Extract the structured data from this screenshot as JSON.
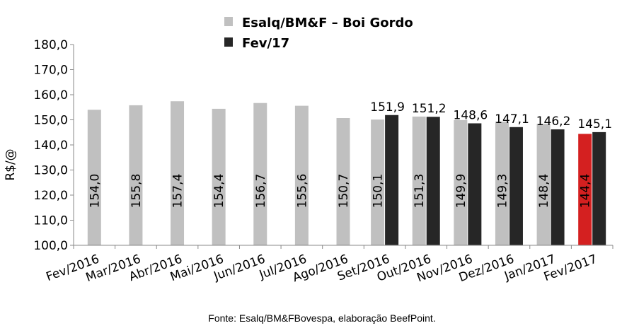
{
  "chart_data": {
    "type": "bar",
    "title": "",
    "xlabel": "",
    "ylabel": "R$/@",
    "ylim": [
      100,
      180
    ],
    "yticks": [
      "100,0",
      "110,0",
      "120,0",
      "130,0",
      "140,0",
      "150,0",
      "160,0",
      "170,0",
      "180,0"
    ],
    "grid": false,
    "legend_position": "top",
    "categories": [
      "Fev/2016",
      "Mar/2016",
      "Abr/2016",
      "Mai/2016",
      "Jun/2016",
      "Jul/2016",
      "Ago/2016",
      "Set/2016",
      "Out/2016",
      "Nov/2016",
      "Dez/2016",
      "Jan/2017",
      "Fev/2017"
    ],
    "series": [
      {
        "name": "Esalq/BM&F – Boi Gordo",
        "color": "#c0c0c0",
        "highlight_color": "#d42020",
        "highlight_index": 12,
        "values": [
          154.0,
          155.8,
          157.4,
          154.4,
          156.7,
          155.6,
          150.7,
          150.1,
          151.3,
          149.9,
          149.3,
          148.4,
          144.4
        ],
        "labels": [
          "154,0",
          "155,8",
          "157,4",
          "154,4",
          "156,7",
          "155,6",
          "150,7",
          "150,1",
          "151,3",
          "149,9",
          "149,3",
          "148,4",
          "144,4"
        ]
      },
      {
        "name": "Fev/17",
        "color": "#262626",
        "values": [
          null,
          null,
          null,
          null,
          null,
          null,
          null,
          151.9,
          151.2,
          148.6,
          147.1,
          146.2,
          145.1
        ],
        "labels": [
          null,
          null,
          null,
          null,
          null,
          null,
          null,
          "151,9",
          "151,2",
          "148,6",
          "147,1",
          "146,2",
          "145,1"
        ]
      }
    ],
    "source": "Fonte: Esalq/BM&FBovespa, elaboração BeefPoint."
  }
}
